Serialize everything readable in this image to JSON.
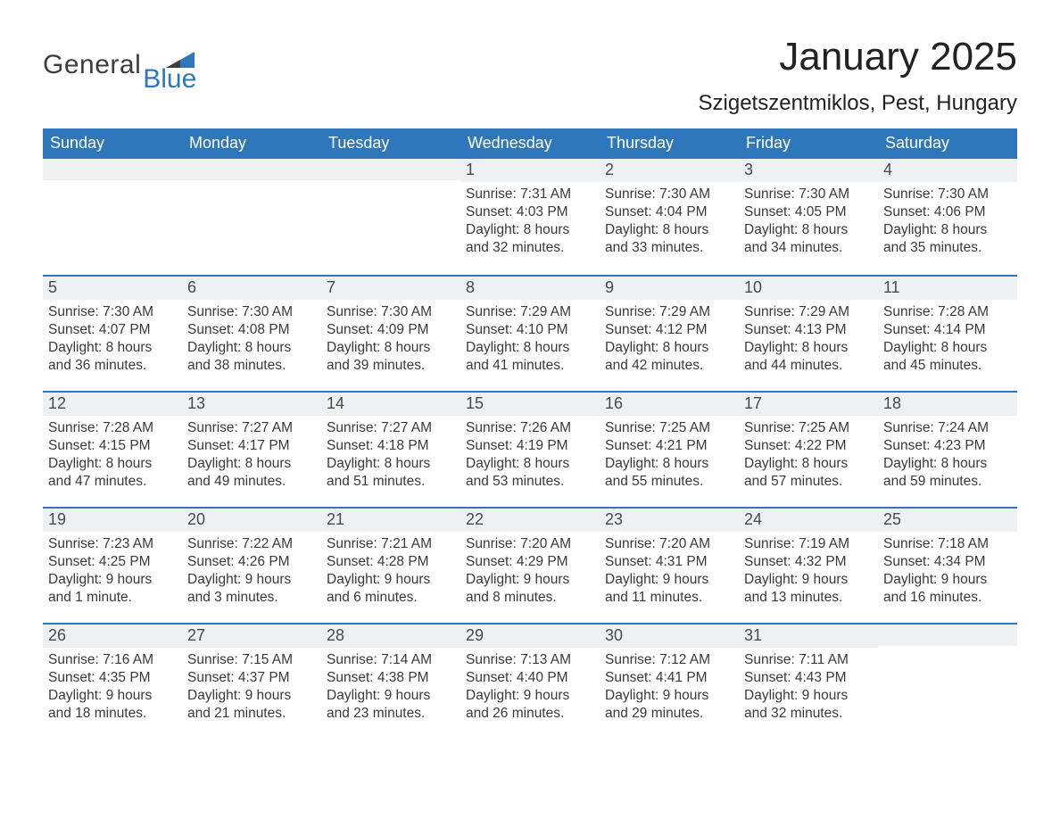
{
  "logo": {
    "word1": "General",
    "word2": "Blue"
  },
  "title": "January 2025",
  "location": "Szigetszentmiklos, Pest, Hungary",
  "colors": {
    "header_blue": "#2f77bb",
    "daynum_bg": "#eef0f1",
    "background": "#ffffff",
    "text": "#2d2d2d"
  },
  "weekday_labels": [
    "Sunday",
    "Monday",
    "Tuesday",
    "Wednesday",
    "Thursday",
    "Friday",
    "Saturday"
  ],
  "labels": {
    "sunrise": "Sunrise:",
    "sunset": "Sunset:",
    "daylight": "Daylight:"
  },
  "weeks": [
    [
      {
        "n": "",
        "sunrise": "",
        "sunset": "",
        "daylight": ""
      },
      {
        "n": "",
        "sunrise": "",
        "sunset": "",
        "daylight": ""
      },
      {
        "n": "",
        "sunrise": "",
        "sunset": "",
        "daylight": ""
      },
      {
        "n": "1",
        "sunrise": "7:31 AM",
        "sunset": "4:03 PM",
        "daylight": "8 hours and 32 minutes."
      },
      {
        "n": "2",
        "sunrise": "7:30 AM",
        "sunset": "4:04 PM",
        "daylight": "8 hours and 33 minutes."
      },
      {
        "n": "3",
        "sunrise": "7:30 AM",
        "sunset": "4:05 PM",
        "daylight": "8 hours and 34 minutes."
      },
      {
        "n": "4",
        "sunrise": "7:30 AM",
        "sunset": "4:06 PM",
        "daylight": "8 hours and 35 minutes."
      }
    ],
    [
      {
        "n": "5",
        "sunrise": "7:30 AM",
        "sunset": "4:07 PM",
        "daylight": "8 hours and 36 minutes."
      },
      {
        "n": "6",
        "sunrise": "7:30 AM",
        "sunset": "4:08 PM",
        "daylight": "8 hours and 38 minutes."
      },
      {
        "n": "7",
        "sunrise": "7:30 AM",
        "sunset": "4:09 PM",
        "daylight": "8 hours and 39 minutes."
      },
      {
        "n": "8",
        "sunrise": "7:29 AM",
        "sunset": "4:10 PM",
        "daylight": "8 hours and 41 minutes."
      },
      {
        "n": "9",
        "sunrise": "7:29 AM",
        "sunset": "4:12 PM",
        "daylight": "8 hours and 42 minutes."
      },
      {
        "n": "10",
        "sunrise": "7:29 AM",
        "sunset": "4:13 PM",
        "daylight": "8 hours and 44 minutes."
      },
      {
        "n": "11",
        "sunrise": "7:28 AM",
        "sunset": "4:14 PM",
        "daylight": "8 hours and 45 minutes."
      }
    ],
    [
      {
        "n": "12",
        "sunrise": "7:28 AM",
        "sunset": "4:15 PM",
        "daylight": "8 hours and 47 minutes."
      },
      {
        "n": "13",
        "sunrise": "7:27 AM",
        "sunset": "4:17 PM",
        "daylight": "8 hours and 49 minutes."
      },
      {
        "n": "14",
        "sunrise": "7:27 AM",
        "sunset": "4:18 PM",
        "daylight": "8 hours and 51 minutes."
      },
      {
        "n": "15",
        "sunrise": "7:26 AM",
        "sunset": "4:19 PM",
        "daylight": "8 hours and 53 minutes."
      },
      {
        "n": "16",
        "sunrise": "7:25 AM",
        "sunset": "4:21 PM",
        "daylight": "8 hours and 55 minutes."
      },
      {
        "n": "17",
        "sunrise": "7:25 AM",
        "sunset": "4:22 PM",
        "daylight": "8 hours and 57 minutes."
      },
      {
        "n": "18",
        "sunrise": "7:24 AM",
        "sunset": "4:23 PM",
        "daylight": "8 hours and 59 minutes."
      }
    ],
    [
      {
        "n": "19",
        "sunrise": "7:23 AM",
        "sunset": "4:25 PM",
        "daylight": "9 hours and 1 minute."
      },
      {
        "n": "20",
        "sunrise": "7:22 AM",
        "sunset": "4:26 PM",
        "daylight": "9 hours and 3 minutes."
      },
      {
        "n": "21",
        "sunrise": "7:21 AM",
        "sunset": "4:28 PM",
        "daylight": "9 hours and 6 minutes."
      },
      {
        "n": "22",
        "sunrise": "7:20 AM",
        "sunset": "4:29 PM",
        "daylight": "9 hours and 8 minutes."
      },
      {
        "n": "23",
        "sunrise": "7:20 AM",
        "sunset": "4:31 PM",
        "daylight": "9 hours and 11 minutes."
      },
      {
        "n": "24",
        "sunrise": "7:19 AM",
        "sunset": "4:32 PM",
        "daylight": "9 hours and 13 minutes."
      },
      {
        "n": "25",
        "sunrise": "7:18 AM",
        "sunset": "4:34 PM",
        "daylight": "9 hours and 16 minutes."
      }
    ],
    [
      {
        "n": "26",
        "sunrise": "7:16 AM",
        "sunset": "4:35 PM",
        "daylight": "9 hours and 18 minutes."
      },
      {
        "n": "27",
        "sunrise": "7:15 AM",
        "sunset": "4:37 PM",
        "daylight": "9 hours and 21 minutes."
      },
      {
        "n": "28",
        "sunrise": "7:14 AM",
        "sunset": "4:38 PM",
        "daylight": "9 hours and 23 minutes."
      },
      {
        "n": "29",
        "sunrise": "7:13 AM",
        "sunset": "4:40 PM",
        "daylight": "9 hours and 26 minutes."
      },
      {
        "n": "30",
        "sunrise": "7:12 AM",
        "sunset": "4:41 PM",
        "daylight": "9 hours and 29 minutes."
      },
      {
        "n": "31",
        "sunrise": "7:11 AM",
        "sunset": "4:43 PM",
        "daylight": "9 hours and 32 minutes."
      },
      {
        "n": "",
        "sunrise": "",
        "sunset": "",
        "daylight": ""
      }
    ]
  ]
}
